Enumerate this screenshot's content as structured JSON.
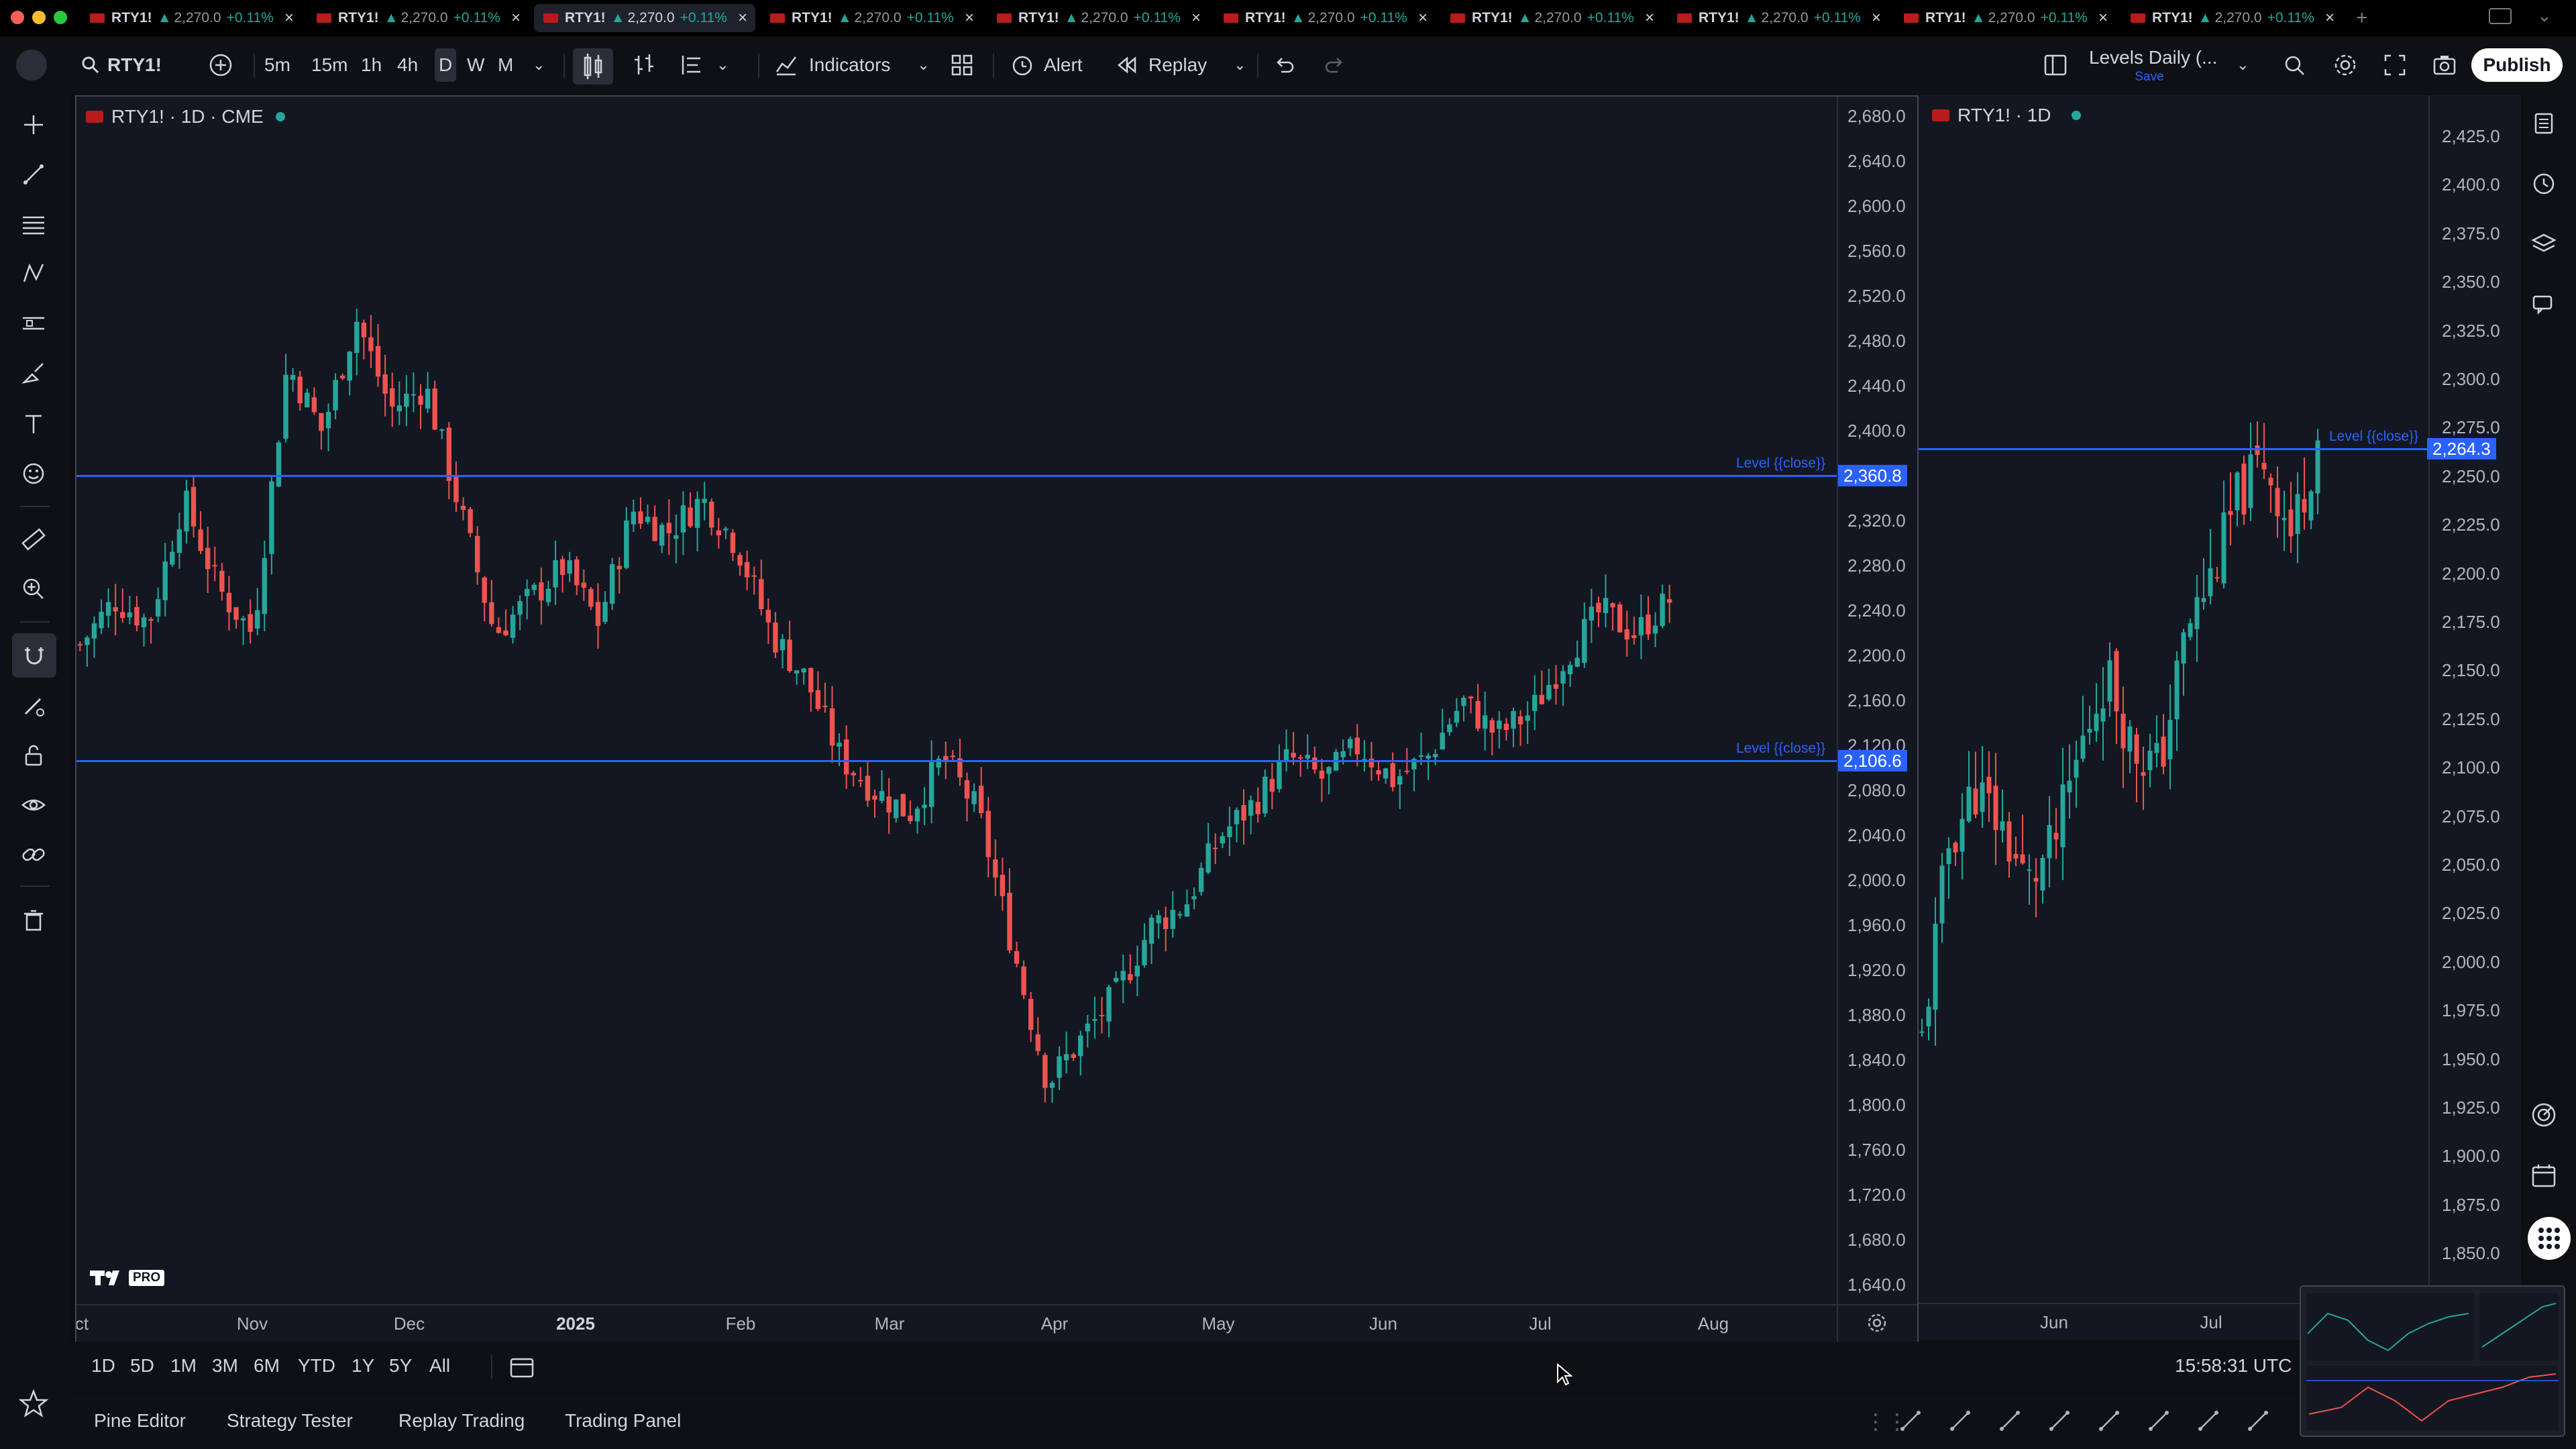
{
  "tabs": [
    {
      "symbol": "RTY1!",
      "price": "2,270.0",
      "change": "+0.11%",
      "active": false
    },
    {
      "symbol": "RTY1!",
      "price": "2,270.0",
      "change": "+0.11%",
      "active": false
    },
    {
      "symbol": "RTY1!",
      "price": "2,270.0",
      "change": "+0.11%",
      "active": true
    },
    {
      "symbol": "RTY1!",
      "price": "2,270.0",
      "change": "+0.11%",
      "active": false
    },
    {
      "symbol": "RTY1!",
      "price": "2,270.0",
      "change": "+0.11%",
      "active": false
    },
    {
      "symbol": "RTY1!",
      "price": "2,270.0",
      "change": "+0.11%",
      "active": false
    },
    {
      "symbol": "RTY1!",
      "price": "2,270.0",
      "change": "+0.11%",
      "active": false
    },
    {
      "symbol": "RTY1!",
      "price": "2,270.0",
      "change": "+0.11%",
      "active": false
    },
    {
      "symbol": "RTY1!",
      "price": "2,270.0",
      "change": "+0.11%",
      "active": false
    },
    {
      "symbol": "RTY1!",
      "price": "2,270.0",
      "change": "+0.11%",
      "active": false
    }
  ],
  "toolbar": {
    "symbol": "RTY1!",
    "intervals": [
      "5m",
      "15m",
      "1h",
      "4h",
      "D",
      "W",
      "M"
    ],
    "selected_interval": "D",
    "indicators_label": "Indicators",
    "alert_label": "Alert",
    "replay_label": "Replay",
    "layout_name": "Levels Daily (...",
    "layout_save": "Save",
    "publish_label": "Publish"
  },
  "left_chart": {
    "title": "RTY1! · 1D · CME",
    "price_labels": [
      "2,680.0",
      "2,640.0",
      "2,600.0",
      "2,560.0",
      "2,520.0",
      "2,480.0",
      "2,440.0",
      "2,400.0",
      "2,360.0",
      "2,320.0",
      "2,280.0",
      "2,240.0",
      "2,200.0",
      "2,160.0",
      "2,120.0",
      "2,080.0",
      "2,040.0",
      "2,000.0",
      "1,960.0",
      "1,920.0",
      "1,880.0",
      "1,840.0",
      "1,800.0",
      "1,760.0",
      "1,720.0",
      "1,680.0",
      "1,640.0"
    ],
    "date_labels": [
      "ct",
      "Nov",
      "Dec",
      "2025",
      "Feb",
      "Mar",
      "Apr",
      "May",
      "Jun",
      "Jul",
      "Aug"
    ],
    "levels": [
      {
        "text": "Level {{close}}",
        "value": "2,360.8"
      },
      {
        "text": "Level {{close}}",
        "value": "2,106.6"
      }
    ],
    "watermark": "PRO"
  },
  "right_chart": {
    "title": "RTY1! · 1D",
    "price_labels": [
      "2,425.0",
      "2,400.0",
      "2,375.0",
      "2,350.0",
      "2,325.0",
      "2,300.0",
      "2,275.0",
      "2,250.0",
      "2,225.0",
      "2,200.0",
      "2,175.0",
      "2,150.0",
      "2,125.0",
      "2,100.0",
      "2,075.0",
      "2,050.0",
      "2,025.0",
      "2,000.0",
      "1,975.0",
      "1,950.0",
      "1,925.0",
      "1,900.0",
      "1,875.0",
      "1,850.0"
    ],
    "date_labels": [
      "Jun",
      "Jul"
    ],
    "level": {
      "text": "Level {{close}}",
      "value": "2,264.3"
    }
  },
  "range_buttons": [
    "1D",
    "5D",
    "1M",
    "3M",
    "6M",
    "YTD",
    "1Y",
    "5Y",
    "All"
  ],
  "clock": "15:58:31 UTC",
  "bottom_tabs": [
    "Pine Editor",
    "Strategy Tester",
    "Replay Trading",
    "Trading Panel"
  ],
  "colors": {
    "up": "#26a69a",
    "down": "#ef5350",
    "level": "#2962ff",
    "pane": "#131722"
  }
}
